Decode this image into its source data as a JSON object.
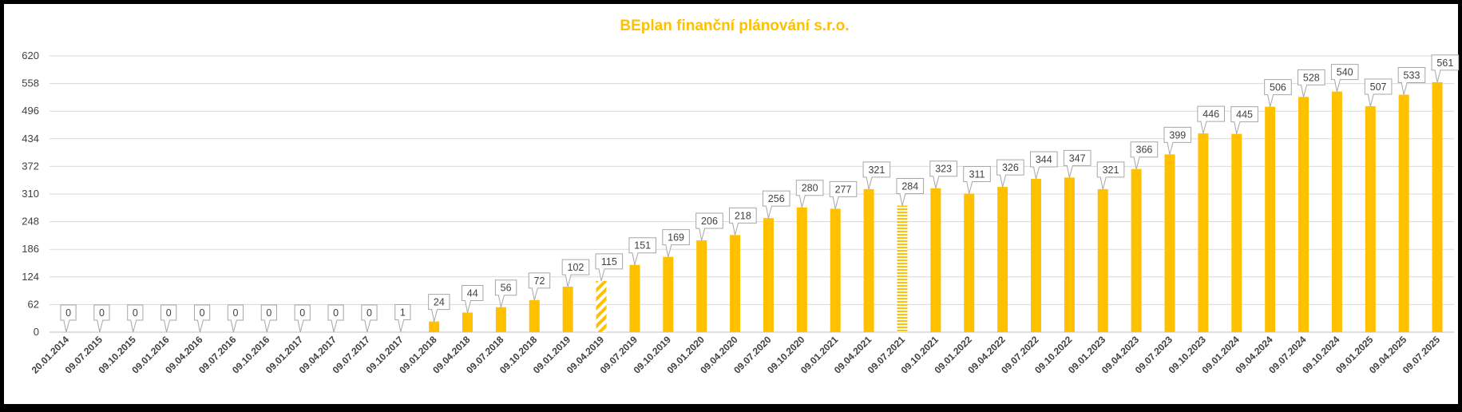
{
  "chart_data": {
    "type": "bar",
    "title": "BEplan finanční plánování s.r.o.",
    "title_color": "#FFC000",
    "bar_color": "#FFC000",
    "grid": true,
    "legend": "none",
    "ylim": [
      0,
      620
    ],
    "yticks": [
      0,
      62,
      124,
      186,
      248,
      310,
      372,
      434,
      496,
      558,
      620
    ],
    "xlabel": "",
    "ylabel": "",
    "categories": [
      "20.01.2014",
      "09.07.2015",
      "09.10.2015",
      "09.01.2016",
      "09.04.2016",
      "09.07.2016",
      "09.10.2016",
      "09.01.2017",
      "09.04.2017",
      "09.07.2017",
      "09.10.2017",
      "09.01.2018",
      "09.04.2018",
      "09.07.2018",
      "09.10.2018",
      "09.01.2019",
      "09.04.2019",
      "09.07.2019",
      "09.10.2019",
      "09.01.2020",
      "09.04.2020",
      "09.07.2020",
      "09.10.2020",
      "09.01.2021",
      "09.04.2021",
      "09.07.2021",
      "09.10.2021",
      "09.01.2022",
      "09.04.2022",
      "09.07.2022",
      "09.10.2022",
      "09.01.2023",
      "09.04.2023",
      "09.07.2023",
      "09.10.2023",
      "09.01.2024",
      "09.04.2024",
      "09.07.2024",
      "09.10.2024",
      "09.01.2025",
      "09.04.2025",
      "09.07.2025"
    ],
    "values": [
      0,
      0,
      0,
      0,
      0,
      0,
      0,
      0,
      0,
      0,
      1,
      24,
      44,
      56,
      72,
      102,
      115,
      151,
      169,
      206,
      218,
      256,
      280,
      277,
      321,
      284,
      323,
      311,
      326,
      344,
      347,
      321,
      366,
      399,
      446,
      445,
      506,
      528,
      540,
      507,
      533,
      561
    ],
    "bar_patterns": {
      "09.04.2019": "diagonal-stripes",
      "09.07.2021": "horizontal-stripes"
    }
  }
}
